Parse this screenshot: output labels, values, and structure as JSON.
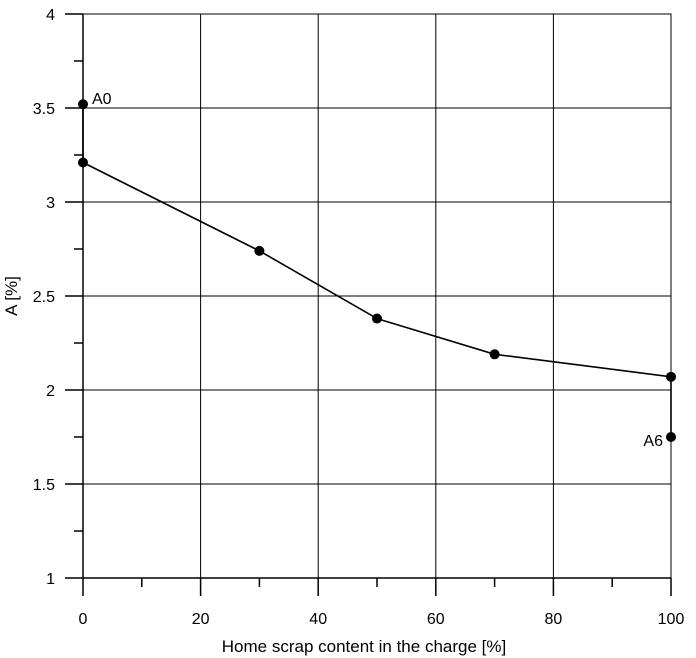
{
  "chart_data": {
    "type": "line",
    "title": "",
    "xlabel": "Home scrap content in the charge [%]",
    "ylabel": "A [%]",
    "xlim": [
      0,
      100
    ],
    "ylim": [
      1,
      4
    ],
    "x_ticks": [
      0,
      20,
      40,
      60,
      80,
      100
    ],
    "y_ticks": [
      1,
      1.5,
      2,
      2.5,
      3,
      3.5,
      4
    ],
    "x_tick_labels": [
      "0",
      "20",
      "40",
      "60",
      "80",
      "100"
    ],
    "y_tick_labels": [
      "1",
      "1.5",
      "2",
      "2.5",
      "3",
      "3.5",
      "4"
    ],
    "x_minor_ticks": [
      10,
      30,
      50,
      70,
      90
    ],
    "y_minor_ticks": [
      1.25,
      1.75,
      2.25,
      2.75,
      3.25,
      3.75
    ],
    "grid": true,
    "series": [
      {
        "x": [
          0,
          0,
          30,
          50,
          70,
          100,
          100
        ],
        "y": [
          3.52,
          3.21,
          2.74,
          2.38,
          2.19,
          2.07,
          1.75
        ]
      }
    ],
    "annotations": [
      {
        "text": "A0",
        "x": 0,
        "y": 3.52,
        "anchor": "right"
      },
      {
        "text": "A6",
        "x": 100,
        "y": 1.75,
        "anchor": "left"
      }
    ]
  }
}
